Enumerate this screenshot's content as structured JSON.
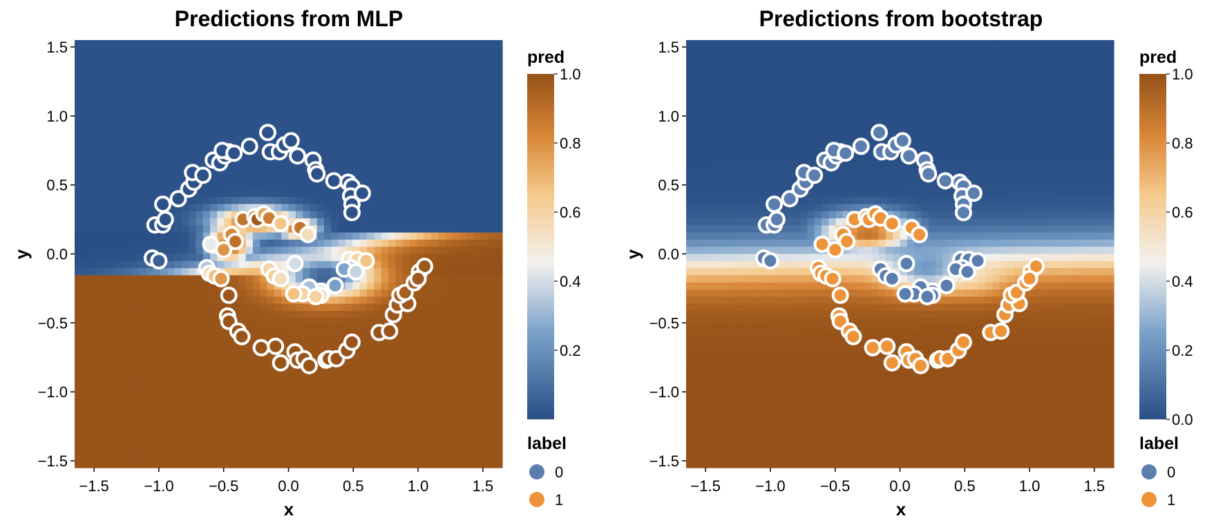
{
  "colors": {
    "low": "#2a4f86",
    "mid": "#f5f2ee",
    "high": "#955118",
    "point_label_0": "#5b7db0",
    "point_label_1": "#ee9339",
    "point_stroke": "#ffffff"
  },
  "chart_data": [
    {
      "type": "heatmap",
      "title": "Predictions from MLP",
      "xlabel": "x",
      "ylabel": "y",
      "xlim": [
        -1.65,
        1.65
      ],
      "ylim": [
        -1.55,
        1.55
      ],
      "x_ticks": [
        -1.5,
        -1.0,
        -0.5,
        0.0,
        0.5,
        1.0,
        1.5
      ],
      "x_tick_labels": [
        "−1.5",
        "−1.0",
        "−0.5",
        "0.0",
        "0.5",
        "1.0",
        "1.5"
      ],
      "y_ticks": [
        -1.5,
        -1.0,
        -0.5,
        0.0,
        0.5,
        1.0,
        1.5
      ],
      "y_tick_labels": [
        "−1.5",
        "−1.0",
        "−0.5",
        "0.0",
        "0.5",
        "1.0",
        "1.5"
      ],
      "fill_variable": "pred",
      "fill_range": [
        0.0,
        1.0
      ],
      "colorbar_ticks": [
        0.2,
        0.4,
        0.6,
        0.8,
        1.0
      ],
      "colorbar_tick_labels": [
        "0.2",
        "0.4",
        "0.6",
        "0.8",
        "1.0"
      ],
      "colorbar_title": "pred",
      "surface": "mlp",
      "legend_title": "label",
      "legend_entries": [
        "0",
        "1"
      ],
      "points_colored_by": "fill"
    },
    {
      "type": "heatmap",
      "title": "Predictions from bootstrap",
      "xlabel": "x",
      "ylabel": "y",
      "xlim": [
        -1.65,
        1.65
      ],
      "ylim": [
        -1.55,
        1.55
      ],
      "x_ticks": [
        -1.5,
        -1.0,
        -0.5,
        0.0,
        0.5,
        1.0,
        1.5
      ],
      "x_tick_labels": [
        "−1.5",
        "−1.0",
        "−0.5",
        "0.0",
        "0.5",
        "1.0",
        "1.5"
      ],
      "y_ticks": [
        -1.5,
        -1.0,
        -0.5,
        0.0,
        0.5,
        1.0,
        1.5
      ],
      "y_tick_labels": [
        "−1.5",
        "−1.0",
        "−0.5",
        "0.0",
        "0.5",
        "1.0",
        "1.5"
      ],
      "fill_variable": "pred",
      "fill_range": [
        0.0,
        1.0
      ],
      "colorbar_ticks": [
        0.0,
        0.2,
        0.4,
        0.6,
        0.8,
        1.0
      ],
      "colorbar_tick_labels": [
        "0.0",
        "0.2",
        "0.4",
        "0.6",
        "0.8",
        "1.0"
      ],
      "colorbar_title": "pred",
      "surface": "bootstrap",
      "legend_title": "label",
      "legend_entries": [
        "0",
        "1"
      ],
      "points_colored_by": "label"
    }
  ],
  "points": {
    "label_0": [
      [
        -1.05,
        -0.03
      ],
      [
        -1.0,
        -0.05
      ],
      [
        -1.03,
        0.21
      ],
      [
        -0.97,
        0.21
      ],
      [
        -0.95,
        0.25
      ],
      [
        -0.97,
        0.36
      ],
      [
        -0.85,
        0.4
      ],
      [
        -0.77,
        0.47
      ],
      [
        -0.73,
        0.52
      ],
      [
        -0.74,
        0.59
      ],
      [
        -0.66,
        0.57
      ],
      [
        -0.58,
        0.68
      ],
      [
        -0.53,
        0.66
      ],
      [
        -0.49,
        0.71
      ],
      [
        -0.46,
        0.74
      ],
      [
        -0.51,
        0.75
      ],
      [
        -0.42,
        0.73
      ],
      [
        -0.3,
        0.78
      ],
      [
        -0.16,
        0.88
      ],
      [
        -0.14,
        0.74
      ],
      [
        -0.07,
        0.74
      ],
      [
        -0.03,
        0.79
      ],
      [
        0.02,
        0.82
      ],
      [
        0.07,
        0.71
      ],
      [
        0.19,
        0.68
      ],
      [
        0.21,
        0.61
      ],
      [
        0.22,
        0.58
      ],
      [
        0.35,
        0.53
      ],
      [
        0.46,
        0.52
      ],
      [
        0.49,
        0.49
      ],
      [
        0.48,
        0.42
      ],
      [
        0.49,
        0.36
      ],
      [
        0.49,
        0.3
      ],
      [
        0.57,
        0.44
      ],
      [
        0.47,
        -0.04
      ],
      [
        0.53,
        -0.04
      ],
      [
        0.6,
        -0.05
      ],
      [
        0.48,
        -0.1
      ],
      [
        0.43,
        -0.11
      ],
      [
        0.52,
        -0.13
      ],
      [
        0.36,
        -0.23
      ],
      [
        0.25,
        -0.27
      ],
      [
        0.25,
        -0.3
      ],
      [
        0.16,
        -0.24
      ],
      [
        0.11,
        -0.29
      ],
      [
        0.04,
        -0.29
      ],
      [
        0.21,
        -0.31
      ],
      [
        -0.15,
        -0.11
      ],
      [
        -0.11,
        -0.16
      ],
      [
        -0.06,
        -0.18
      ],
      [
        0.05,
        -0.07
      ]
    ],
    "label_1": [
      [
        -0.6,
        0.07
      ],
      [
        -0.5,
        0.03
      ],
      [
        -0.44,
        0.14
      ],
      [
        -0.41,
        0.09
      ],
      [
        -0.35,
        0.25
      ],
      [
        -0.26,
        0.27
      ],
      [
        -0.24,
        0.25
      ],
      [
        -0.19,
        0.29
      ],
      [
        -0.15,
        0.26
      ],
      [
        -0.06,
        0.22
      ],
      [
        0.09,
        0.19
      ],
      [
        0.15,
        0.14
      ],
      [
        -0.63,
        -0.1
      ],
      [
        -0.61,
        -0.14
      ],
      [
        -0.57,
        -0.16
      ],
      [
        -0.52,
        -0.18
      ],
      [
        -0.46,
        -0.3
      ],
      [
        -0.47,
        -0.45
      ],
      [
        -0.46,
        -0.49
      ],
      [
        -0.39,
        -0.56
      ],
      [
        -0.36,
        -0.6
      ],
      [
        -0.21,
        -0.68
      ],
      [
        -0.1,
        -0.67
      ],
      [
        -0.06,
        -0.79
      ],
      [
        0.05,
        -0.71
      ],
      [
        0.07,
        -0.77
      ],
      [
        0.12,
        -0.76
      ],
      [
        0.16,
        -0.81
      ],
      [
        0.29,
        -0.77
      ],
      [
        0.31,
        -0.76
      ],
      [
        0.37,
        -0.76
      ],
      [
        0.45,
        -0.7
      ],
      [
        0.49,
        -0.64
      ],
      [
        0.7,
        -0.57
      ],
      [
        0.78,
        -0.56
      ],
      [
        0.81,
        -0.44
      ],
      [
        0.84,
        -0.37
      ],
      [
        0.92,
        -0.36
      ],
      [
        0.86,
        -0.3
      ],
      [
        0.9,
        -0.28
      ],
      [
        0.97,
        -0.21
      ],
      [
        1.01,
        -0.13
      ],
      [
        1.05,
        -0.09
      ],
      [
        1.0,
        -0.18
      ]
    ]
  }
}
